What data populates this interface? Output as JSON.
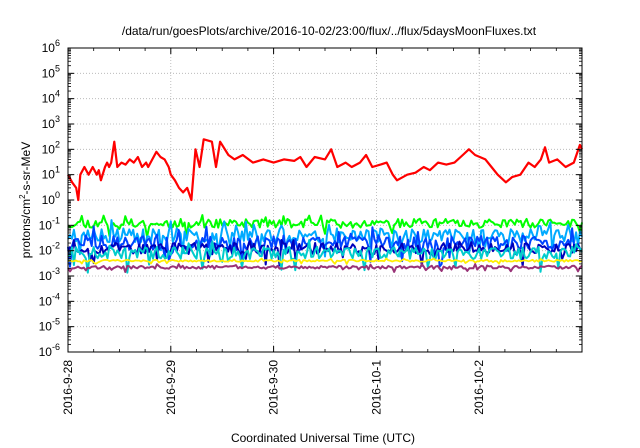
{
  "chart_data": {
    "type": "line",
    "title": "/data/run/goesPlots/archive/2016-10-02/23:00/flux/../flux/5daysMoonFluxes.txt",
    "xlabel": "Coordinated Universal Time (UTC)",
    "ylabel": {
      "base": "protons/cm",
      "sup": "2",
      "rest": "-s-sr-MeV"
    },
    "y_scale": "log",
    "ylim_exp": [
      -6,
      6
    ],
    "y_tick_base": "10",
    "y_tick_exponents": [
      "6",
      "5",
      "4",
      "3",
      "2",
      "1",
      "0",
      "-1",
      "-2",
      "-3",
      "-4",
      "-5",
      "-6"
    ],
    "xlim": [
      "2016-09-28T00:00",
      "2016-10-03T00:00"
    ],
    "x_tick_labels": [
      "2016-9-28",
      "2016-9-29",
      "2016-9-30",
      "2016-10-1",
      "2016-10-2"
    ],
    "grid": true,
    "legend": "none",
    "series": [
      {
        "color": "#ff0000",
        "width": 2.2,
        "points": [
          [
            0,
            10
          ],
          [
            0.04,
            5
          ],
          [
            0.08,
            3
          ],
          [
            0.1,
            1
          ],
          [
            0.12,
            10
          ],
          [
            0.16,
            20
          ],
          [
            0.2,
            10
          ],
          [
            0.24,
            20
          ],
          [
            0.28,
            10
          ],
          [
            0.3,
            15
          ],
          [
            0.32,
            6
          ],
          [
            0.36,
            20
          ],
          [
            0.38,
            30
          ],
          [
            0.4,
            20
          ],
          [
            0.42,
            30
          ],
          [
            0.45,
            200
          ],
          [
            0.48,
            20
          ],
          [
            0.52,
            30
          ],
          [
            0.56,
            25
          ],
          [
            0.6,
            40
          ],
          [
            0.64,
            30
          ],
          [
            0.68,
            50
          ],
          [
            0.72,
            20
          ],
          [
            0.76,
            30
          ],
          [
            0.78,
            20
          ],
          [
            0.82,
            40
          ],
          [
            0.86,
            80
          ],
          [
            0.9,
            50
          ],
          [
            0.94,
            40
          ],
          [
            0.98,
            20
          ],
          [
            1.0,
            10
          ],
          [
            1.04,
            6
          ],
          [
            1.08,
            3
          ],
          [
            1.12,
            2
          ],
          [
            1.16,
            3
          ],
          [
            1.2,
            1
          ],
          [
            1.24,
            100
          ],
          [
            1.28,
            20
          ],
          [
            1.32,
            250
          ],
          [
            1.4,
            200
          ],
          [
            1.44,
            20
          ],
          [
            1.48,
            200
          ],
          [
            1.56,
            60
          ],
          [
            1.62,
            40
          ],
          [
            1.7,
            60
          ],
          [
            1.8,
            30
          ],
          [
            1.9,
            40
          ],
          [
            2.0,
            30
          ],
          [
            2.1,
            40
          ],
          [
            2.2,
            35
          ],
          [
            2.26,
            50
          ],
          [
            2.32,
            20
          ],
          [
            2.4,
            50
          ],
          [
            2.5,
            40
          ],
          [
            2.56,
            100
          ],
          [
            2.62,
            20
          ],
          [
            2.7,
            30
          ],
          [
            2.76,
            20
          ],
          [
            2.84,
            30
          ],
          [
            2.9,
            60
          ],
          [
            2.96,
            20
          ],
          [
            3.04,
            25
          ],
          [
            3.1,
            30
          ],
          [
            3.16,
            10
          ],
          [
            3.2,
            6
          ],
          [
            3.3,
            10
          ],
          [
            3.38,
            12
          ],
          [
            3.46,
            20
          ],
          [
            3.52,
            15
          ],
          [
            3.6,
            30
          ],
          [
            3.68,
            25
          ],
          [
            3.76,
            30
          ],
          [
            3.84,
            60
          ],
          [
            3.9,
            100
          ],
          [
            3.96,
            60
          ],
          [
            4.06,
            40
          ],
          [
            4.12,
            20
          ],
          [
            4.18,
            10
          ],
          [
            4.26,
            5
          ],
          [
            4.32,
            8
          ],
          [
            4.4,
            10
          ],
          [
            4.48,
            30
          ],
          [
            4.54,
            20
          ],
          [
            4.6,
            40
          ],
          [
            4.64,
            120
          ],
          [
            4.68,
            30
          ],
          [
            4.76,
            40
          ],
          [
            4.84,
            20
          ],
          [
            4.92,
            30
          ],
          [
            4.98,
            150
          ],
          [
            5.0,
            100
          ]
        ]
      },
      {
        "color": "#00ff00",
        "width": 2.0,
        "base": 0.12,
        "amp": 0.35,
        "seed": 11
      },
      {
        "color": "#00aaff",
        "width": 2.0,
        "base": 0.04,
        "amp": 0.55,
        "seed": 23
      },
      {
        "color": "#0044ff",
        "width": 2.0,
        "base": 0.02,
        "amp": 0.6,
        "seed": 37
      },
      {
        "color": "#0000bb",
        "width": 2.0,
        "base": 0.012,
        "amp": 0.45,
        "seed": 53
      },
      {
        "color": "#00cccc",
        "width": 2.0,
        "base": 0.008,
        "amp": 0.5,
        "seed": 71
      },
      {
        "color": "#ffee00",
        "width": 1.8,
        "base": 0.004,
        "amp": 0.08,
        "seed": 83
      },
      {
        "color": "#993377",
        "width": 2.0,
        "base": 0.0022,
        "amp": 0.12,
        "seed": 97
      }
    ]
  }
}
